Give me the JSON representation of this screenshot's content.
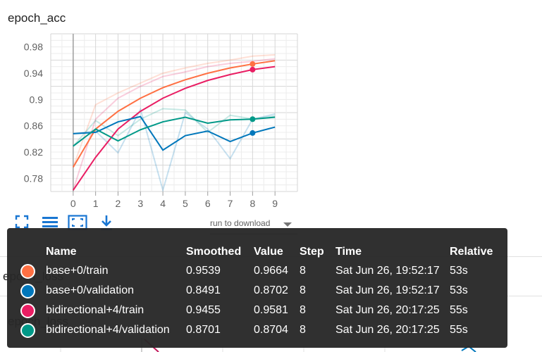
{
  "chart_title": "epoch_acc",
  "background_labels": [
    "epoch_loss",
    "epoch_loss"
  ],
  "run_select": {
    "placeholder": "run to download"
  },
  "toolbar": {
    "fullscreen_icon": "fullscreen-icon",
    "log_scale_icon": "lines-icon",
    "fit_domain_icon": "fit-domain-icon",
    "download_icon": "download-icon"
  },
  "chart_data": {
    "type": "line",
    "title": "epoch_acc",
    "xlabel": "",
    "ylabel": "",
    "x": [
      0,
      1,
      2,
      3,
      4,
      5,
      6,
      7,
      8,
      9
    ],
    "xlim": [
      -1,
      10
    ],
    "ylim": [
      0.76,
      1.0
    ],
    "xticks": [
      "0",
      "1",
      "2",
      "3",
      "4",
      "5",
      "6",
      "7",
      "8",
      "9"
    ],
    "yticks": [
      0.78,
      0.82,
      0.86,
      0.9,
      0.94,
      0.98
    ],
    "ytick_labels": [
      "0.78",
      "0.82",
      "0.86",
      "0.9",
      "0.94",
      "0.98"
    ],
    "series": [
      {
        "name": "base+0/train",
        "color": "#ff7043",
        "smoothed": [
          0.797,
          0.855,
          0.882,
          0.902,
          0.918,
          0.93,
          0.94,
          0.948,
          0.954,
          0.959
        ],
        "raw": [
          0.797,
          0.892,
          0.91,
          0.925,
          0.94,
          0.948,
          0.955,
          0.96,
          0.966,
          0.968
        ]
      },
      {
        "name": "bidirectional+4/train",
        "color": "#e91e63",
        "smoothed": [
          0.762,
          0.812,
          0.855,
          0.882,
          0.902,
          0.917,
          0.929,
          0.938,
          0.9455,
          0.95
        ],
        "raw": [
          0.762,
          0.87,
          0.902,
          0.92,
          0.935,
          0.942,
          0.95,
          0.955,
          0.9581,
          0.962
        ]
      },
      {
        "name": "base+0/validation",
        "color": "#0077bb",
        "smoothed": [
          0.848,
          0.85,
          0.866,
          0.874,
          0.823,
          0.845,
          0.852,
          0.836,
          0.849,
          0.858
        ],
        "raw": [
          0.848,
          0.852,
          0.819,
          0.885,
          0.762,
          0.88,
          0.855,
          0.81,
          0.87,
          0.878
        ]
      },
      {
        "name": "bidirectional+4/validation",
        "color": "#009988",
        "smoothed": [
          0.829,
          0.855,
          0.837,
          0.854,
          0.866,
          0.873,
          0.864,
          0.869,
          0.8701,
          0.873
        ],
        "raw": [
          0.829,
          0.868,
          0.845,
          0.87,
          0.886,
          0.884,
          0.85,
          0.876,
          0.8704,
          0.875
        ]
      }
    ],
    "highlight_x": 8
  },
  "tooltip": {
    "headers": {
      "name": "Name",
      "smoothed": "Smoothed",
      "value": "Value",
      "step": "Step",
      "time": "Time",
      "relative": "Relative"
    },
    "rows": [
      {
        "color": "#ff7043",
        "name": "base+0/train",
        "smoothed": "0.9539",
        "value": "0.9664",
        "step": "8",
        "time": "Sat Jun 26, 19:52:17",
        "relative": "53s"
      },
      {
        "color": "#0077bb",
        "name": "base+0/validation",
        "smoothed": "0.8491",
        "value": "0.8702",
        "step": "8",
        "time": "Sat Jun 26, 19:52:17",
        "relative": "53s"
      },
      {
        "color": "#e91e63",
        "name": "bidirectional+4/train",
        "smoothed": "0.9455",
        "value": "0.9581",
        "step": "8",
        "time": "Sat Jun 26, 20:17:25",
        "relative": "55s"
      },
      {
        "color": "#009988",
        "name": "bidirectional+4/validation",
        "smoothed": "0.8701",
        "value": "0.8704",
        "step": "8",
        "time": "Sat Jun 26, 20:17:25",
        "relative": "55s"
      }
    ]
  }
}
